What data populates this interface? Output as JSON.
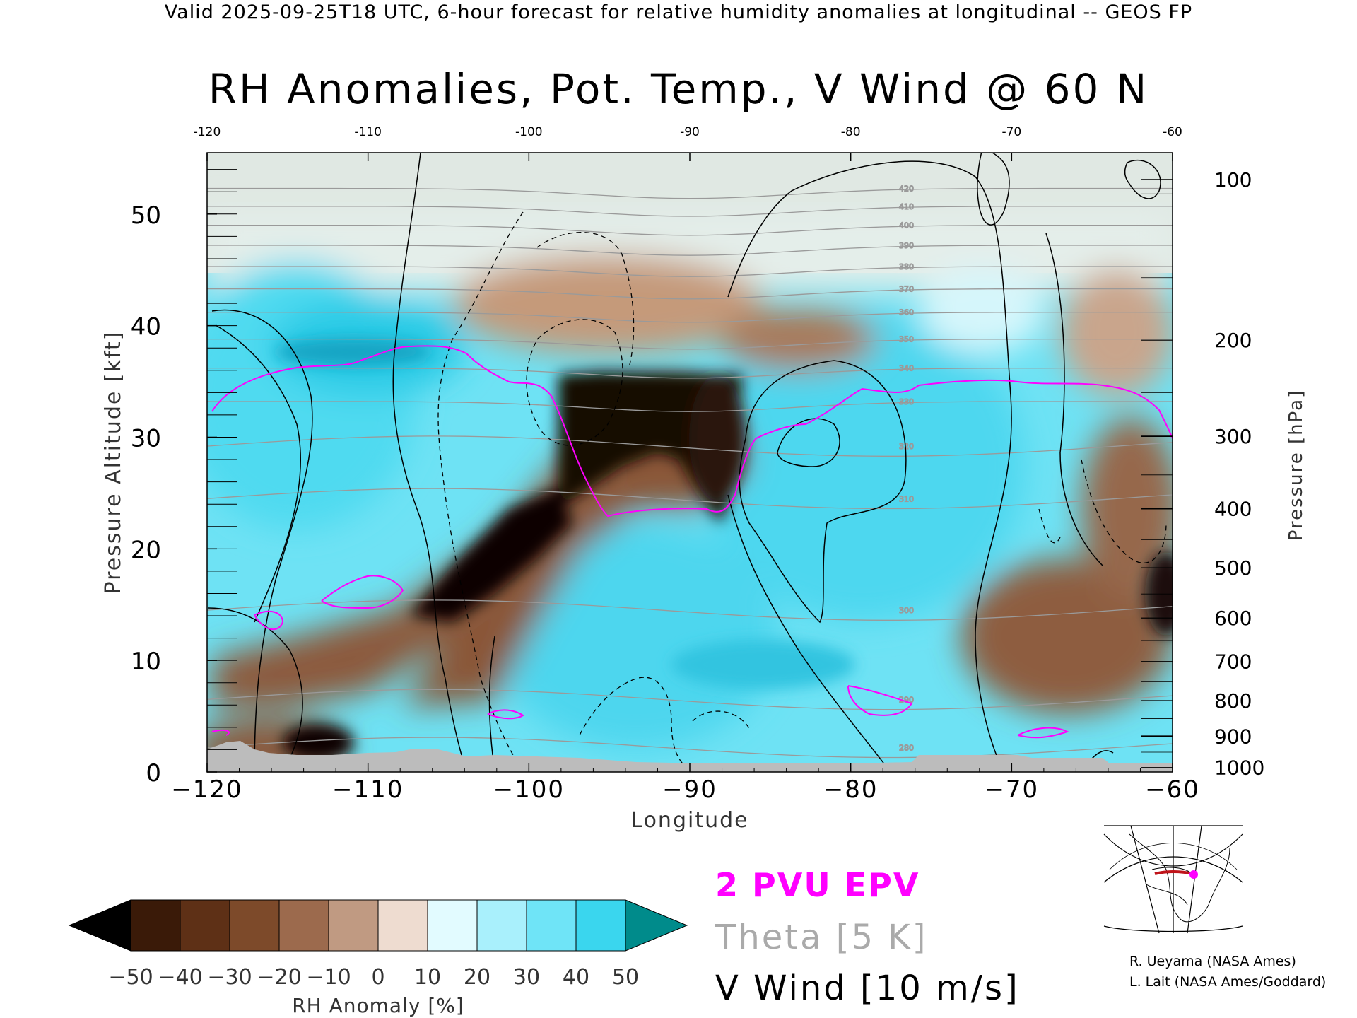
{
  "header": {
    "valid_line": "Valid 2025-09-25T18 UTC, 6-hour forecast for relative humidity anomalies at longitudinal -- GEOS FP",
    "title": "RH Anomalies, Pot. Temp., V Wind @ 60 N"
  },
  "chart_data": {
    "type": "heatmap",
    "title": "RH Anomalies, Pot. Temp., V Wind @ 60 N",
    "xlabel": "Longitude",
    "ylabel": "Pressure Altitude [kft]",
    "y2label": "Pressure [hPa]",
    "xlim": [
      -120,
      -60
    ],
    "ylim": [
      0,
      50
    ],
    "x_ticks": [
      -120,
      -110,
      -100,
      -90,
      -80,
      -70,
      -60
    ],
    "x_ticks_top": [
      "-120",
      "-110",
      "-100",
      "-90",
      "-80",
      "-70",
      "-60"
    ],
    "x_tick_labels": [
      "−120",
      "−110",
      "−100",
      "−90",
      "−80",
      "−70",
      "−60"
    ],
    "y_ticks": [
      0,
      10,
      20,
      30,
      40,
      50
    ],
    "y_tick_labels": [
      "0",
      "10",
      "20",
      "30",
      "40",
      "50"
    ],
    "pressure_ticks": [
      {
        "hPa": 100,
        "kft": 53.1
      },
      {
        "hPa": 200,
        "kft": 38.7
      },
      {
        "hPa": 300,
        "kft": 30.1
      },
      {
        "hPa": 400,
        "kft": 23.6
      },
      {
        "hPa": 500,
        "kft": 18.3
      },
      {
        "hPa": 600,
        "kft": 13.8
      },
      {
        "hPa": 700,
        "kft": 9.9
      },
      {
        "hPa": 800,
        "kft": 6.4
      },
      {
        "hPa": 900,
        "kft": 3.2
      },
      {
        "hPa": 1000,
        "kft": 0.4
      }
    ],
    "theta_contours": [
      280,
      290,
      300,
      310,
      320,
      330,
      340,
      350,
      360,
      370,
      380,
      390,
      400,
      410,
      420
    ],
    "v_wind_contours": [
      -10,
      0,
      10,
      20,
      30
    ],
    "colorbar": {
      "label": "RH Anomaly [%]",
      "ticks": [
        "−50",
        "−40",
        "−30",
        "−20",
        "−10",
        "0",
        "10",
        "20",
        "30",
        "40",
        "50"
      ],
      "colors": [
        "#000000",
        "#3a1a08",
        "#5e3016",
        "#7d4a2a",
        "#9c6a4d",
        "#c09a82",
        "#eedcd0",
        "#e2fbff",
        "#a9f0fc",
        "#6fe4f7",
        "#3ad6ee",
        "#19b9d9",
        "#0f8faf",
        "#008b8b"
      ]
    },
    "grid": false,
    "legend": [
      {
        "label": "2 PVU EPV",
        "color": "#ff00ff"
      },
      {
        "label": "Theta [5 K]",
        "color": "#aaaaaa"
      },
      {
        "label": "V Wind [10 m/s]",
        "color": "#000000"
      }
    ]
  },
  "credits": [
    "R. Ueyama (NASA Ames)",
    "L. Lait (NASA Ames/Goddard)"
  ]
}
